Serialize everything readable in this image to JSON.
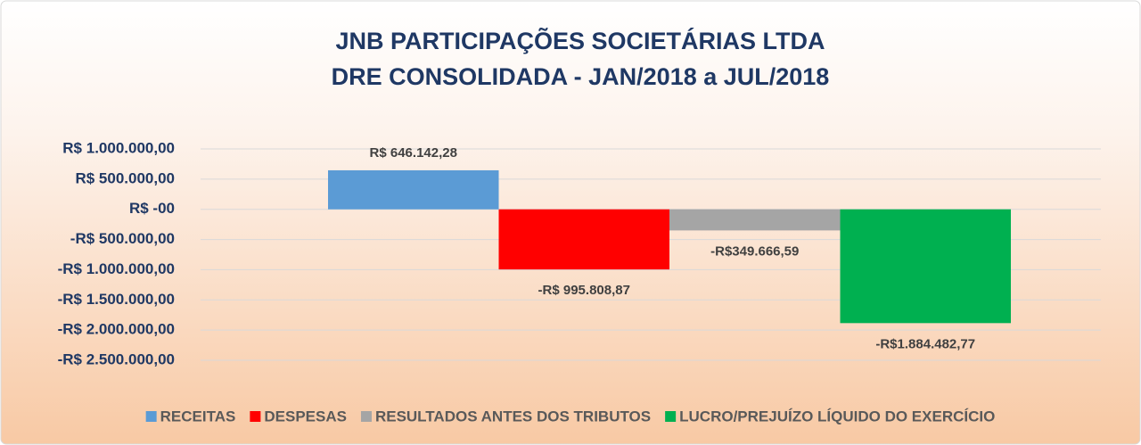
{
  "chart_data": {
    "type": "bar",
    "title": "JNB PARTICIPAÇÕES SOCIETÁRIAS LTDA",
    "subtitle": "DRE CONSOLIDADA - JAN/2018 a JUL/2018",
    "categories": [
      null
    ],
    "series": [
      {
        "name": "RECEITAS",
        "color": "#5b9bd5",
        "values": [
          646142.28
        ],
        "value_labels": [
          "R$ 646.142,28"
        ]
      },
      {
        "name": "DESPESAS",
        "color": "#ff0000",
        "values": [
          -995808.87
        ],
        "value_labels": [
          "-R$ 995.808,87"
        ]
      },
      {
        "name": "RESULTADOS ANTES DOS TRIBUTOS",
        "color": "#a5a5a5",
        "values": [
          -349666.59
        ],
        "value_labels": [
          "-R$349.666,59"
        ]
      },
      {
        "name": "LUCRO/PREJUÍZO LÍQUIDO DO EXERCÍCIO",
        "color": "#00b050",
        "values": [
          -1884482.77
        ],
        "value_labels": [
          "-R$1.884.482,77"
        ]
      }
    ],
    "ylim": [
      -2500000,
      1000000
    ],
    "yticks": [
      {
        "value": 1000000,
        "label": "R$ 1.000.000,00"
      },
      {
        "value": 500000,
        "label": "R$ 500.000,00"
      },
      {
        "value": 0,
        "label": "R$ -00"
      },
      {
        "value": -500000,
        "label": "-R$ 500.000,00"
      },
      {
        "value": -1000000,
        "label": "-R$ 1.000.000,00"
      },
      {
        "value": -1500000,
        "label": "-R$ 1.500.000,00"
      },
      {
        "value": -2000000,
        "label": "-R$ 2.000.000,00"
      },
      {
        "value": -2500000,
        "label": "-R$ 2.500.000,00"
      }
    ],
    "grid": true,
    "legend": "bottom"
  }
}
